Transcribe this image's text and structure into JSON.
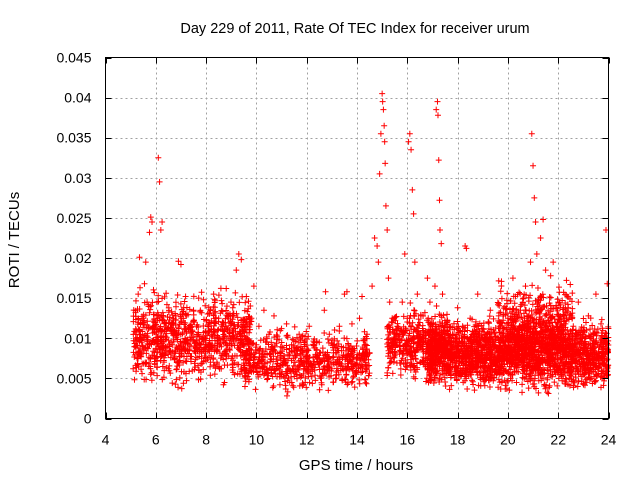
{
  "chart_data": {
    "type": "scatter",
    "title": "Day 229 of 2011, Rate Of TEC Index for receiver urum",
    "xlabel": "GPS time / hours",
    "ylabel": "ROTI / TECUs",
    "xlim": [
      4,
      24
    ],
    "ylim": [
      0,
      0.045
    ],
    "x_ticks": [
      4,
      6,
      8,
      10,
      12,
      14,
      16,
      18,
      20,
      22,
      24
    ],
    "x_tick_labels": [
      "4",
      "6",
      "8",
      "10",
      "12",
      "14",
      "16",
      "18",
      "20",
      "22",
      "24"
    ],
    "y_ticks": [
      0,
      0.005,
      0.01,
      0.015,
      0.02,
      0.025,
      0.03,
      0.035,
      0.04,
      0.045
    ],
    "y_tick_labels": [
      "0",
      "0.005",
      "0.01",
      "0.015",
      "0.02",
      "0.025",
      "0.03",
      "0.035",
      "0.04",
      "0.045"
    ],
    "grid": true,
    "marker": "+",
    "color": "#ff0000",
    "series": [
      {
        "name": "ROTI",
        "points": [
          [
            5.1,
            0.0062
          ],
          [
            5.2,
            0.0105
          ],
          [
            5.3,
            0.0155
          ],
          [
            5.35,
            0.0201
          ],
          [
            5.4,
            0.0078
          ],
          [
            5.5,
            0.0125
          ],
          [
            5.55,
            0.0168
          ],
          [
            5.6,
            0.0195
          ],
          [
            5.65,
            0.0088
          ],
          [
            5.7,
            0.0142
          ],
          [
            5.75,
            0.0232
          ],
          [
            5.8,
            0.0251
          ],
          [
            5.85,
            0.0245
          ],
          [
            5.9,
            0.0112
          ],
          [
            5.95,
            0.0071
          ],
          [
            6.0,
            0.0096
          ],
          [
            6.05,
            0.0145
          ],
          [
            6.1,
            0.0325
          ],
          [
            6.15,
            0.0295
          ],
          [
            6.2,
            0.0235
          ],
          [
            6.25,
            0.0245
          ],
          [
            6.3,
            0.0128
          ],
          [
            6.4,
            0.0085
          ],
          [
            6.5,
            0.0062
          ],
          [
            6.6,
            0.0112
          ],
          [
            6.7,
            0.0098
          ],
          [
            6.8,
            0.0128
          ],
          [
            6.9,
            0.0196
          ],
          [
            7.0,
            0.0192
          ],
          [
            7.1,
            0.0089
          ],
          [
            7.2,
            0.0056
          ],
          [
            7.3,
            0.0112
          ],
          [
            7.4,
            0.0071
          ],
          [
            7.5,
            0.0135
          ],
          [
            7.6,
            0.0088
          ],
          [
            7.7,
            0.0105
          ],
          [
            7.8,
            0.0068
          ],
          [
            7.9,
            0.0148
          ],
          [
            8.0,
            0.0092
          ],
          [
            8.1,
            0.0115
          ],
          [
            8.2,
            0.0078
          ],
          [
            8.3,
            0.0155
          ],
          [
            8.4,
            0.0085
          ],
          [
            8.5,
            0.0125
          ],
          [
            8.6,
            0.0062
          ],
          [
            8.7,
            0.0095
          ],
          [
            8.8,
            0.0162
          ],
          [
            8.9,
            0.0078
          ],
          [
            9.0,
            0.0118
          ],
          [
            9.1,
            0.0142
          ],
          [
            9.2,
            0.0185
          ],
          [
            9.3,
            0.0205
          ],
          [
            9.4,
            0.0198
          ],
          [
            9.5,
            0.0108
          ],
          [
            9.6,
            0.0152
          ],
          [
            9.7,
            0.0085
          ],
          [
            9.8,
            0.0125
          ],
          [
            9.9,
            0.0165
          ],
          [
            10.0,
            0.0092
          ],
          [
            10.1,
            0.0115
          ],
          [
            10.2,
            0.0072
          ],
          [
            10.3,
            0.0135
          ],
          [
            10.4,
            0.0058
          ],
          [
            10.5,
            0.0105
          ],
          [
            10.6,
            0.0088
          ],
          [
            10.7,
            0.0128
          ],
          [
            10.8,
            0.0065
          ],
          [
            10.9,
            0.0098
          ],
          [
            11.0,
            0.0112
          ],
          [
            11.1,
            0.0075
          ],
          [
            11.2,
            0.0118
          ],
          [
            11.3,
            0.0062
          ],
          [
            11.4,
            0.0092
          ],
          [
            11.5,
            0.0085
          ],
          [
            11.6,
            0.0055
          ],
          [
            11.7,
            0.0105
          ],
          [
            11.8,
            0.0072
          ],
          [
            11.9,
            0.0095
          ],
          [
            12.0,
            0.0068
          ],
          [
            12.1,
            0.0115
          ],
          [
            12.2,
            0.0052
          ],
          [
            12.3,
            0.0088
          ],
          [
            12.4,
            0.0078
          ],
          [
            12.5,
            0.0095
          ],
          [
            12.6,
            0.0042
          ],
          [
            12.7,
            0.0135
          ],
          [
            12.75,
            0.0158
          ],
          [
            12.8,
            0.0075
          ],
          [
            12.9,
            0.0105
          ],
          [
            13.0,
            0.0062
          ],
          [
            13.1,
            0.0092
          ],
          [
            13.2,
            0.0082
          ],
          [
            13.3,
            0.0115
          ],
          [
            13.4,
            0.0068
          ],
          [
            13.5,
            0.0155
          ],
          [
            13.6,
            0.0158
          ],
          [
            13.7,
            0.0072
          ],
          [
            13.8,
            0.0118
          ],
          [
            13.9,
            0.0085
          ],
          [
            14.0,
            0.0075
          ],
          [
            14.1,
            0.0125
          ],
          [
            14.2,
            0.0152
          ],
          [
            14.3,
            0.0098
          ],
          [
            14.4,
            0.0105
          ],
          [
            14.5,
            0.0082
          ],
          [
            14.6,
            0.0165
          ],
          [
            14.7,
            0.0225
          ],
          [
            14.8,
            0.0215
          ],
          [
            14.85,
            0.0195
          ],
          [
            14.9,
            0.0305
          ],
          [
            14.95,
            0.0355
          ],
          [
            15.0,
            0.0405
          ],
          [
            15.02,
            0.0395
          ],
          [
            15.05,
            0.0385
          ],
          [
            15.08,
            0.0365
          ],
          [
            15.1,
            0.0345
          ],
          [
            15.12,
            0.0318
          ],
          [
            15.15,
            0.0265
          ],
          [
            15.2,
            0.0235
          ],
          [
            15.25,
            0.0175
          ],
          [
            15.3,
            0.0145
          ],
          [
            15.4,
            0.0125
          ],
          [
            15.5,
            0.0105
          ],
          [
            15.6,
            0.0115
          ],
          [
            15.7,
            0.0085
          ],
          [
            15.8,
            0.0145
          ],
          [
            15.9,
            0.0205
          ],
          [
            16.0,
            0.0125
          ],
          [
            16.05,
            0.0345
          ],
          [
            16.1,
            0.0355
          ],
          [
            16.15,
            0.0335
          ],
          [
            16.2,
            0.0285
          ],
          [
            16.25,
            0.0255
          ],
          [
            16.3,
            0.0195
          ],
          [
            16.4,
            0.0155
          ],
          [
            16.5,
            0.0102
          ],
          [
            16.6,
            0.0092
          ],
          [
            16.7,
            0.0132
          ],
          [
            16.8,
            0.0175
          ],
          [
            16.9,
            0.0145
          ],
          [
            17.0,
            0.0105
          ],
          [
            17.1,
            0.0165
          ],
          [
            17.15,
            0.0385
          ],
          [
            17.2,
            0.0395
          ],
          [
            17.22,
            0.0378
          ],
          [
            17.25,
            0.0322
          ],
          [
            17.28,
            0.0272
          ],
          [
            17.3,
            0.0235
          ],
          [
            17.35,
            0.0218
          ],
          [
            17.4,
            0.0155
          ],
          [
            17.5,
            0.0095
          ],
          [
            17.6,
            0.0122
          ],
          [
            17.7,
            0.0088
          ],
          [
            17.8,
            0.0105
          ],
          [
            17.9,
            0.0072
          ],
          [
            18.0,
            0.0138
          ],
          [
            18.1,
            0.0062
          ],
          [
            18.2,
            0.0115
          ],
          [
            18.3,
            0.0215
          ],
          [
            18.35,
            0.0212
          ],
          [
            18.4,
            0.0085
          ],
          [
            18.5,
            0.0125
          ],
          [
            18.6,
            0.0068
          ],
          [
            18.7,
            0.0098
          ],
          [
            18.8,
            0.0155
          ],
          [
            18.9,
            0.0078
          ],
          [
            19.0,
            0.0112
          ],
          [
            19.1,
            0.0058
          ],
          [
            19.2,
            0.0092
          ],
          [
            19.3,
            0.0135
          ],
          [
            19.4,
            0.0072
          ],
          [
            19.5,
            0.0102
          ],
          [
            19.6,
            0.0082
          ],
          [
            19.7,
            0.0118
          ],
          [
            19.8,
            0.0065
          ],
          [
            19.9,
            0.0095
          ],
          [
            20.0,
            0.0125
          ],
          [
            20.1,
            0.0075
          ],
          [
            20.2,
            0.0175
          ],
          [
            20.3,
            0.0152
          ],
          [
            20.4,
            0.0095
          ],
          [
            20.5,
            0.0135
          ],
          [
            20.6,
            0.0085
          ],
          [
            20.7,
            0.0165
          ],
          [
            20.8,
            0.0118
          ],
          [
            20.9,
            0.0195
          ],
          [
            20.95,
            0.0355
          ],
          [
            21.0,
            0.0315
          ],
          [
            21.05,
            0.0275
          ],
          [
            21.1,
            0.0245
          ],
          [
            21.15,
            0.0205
          ],
          [
            21.2,
            0.0145
          ],
          [
            21.3,
            0.0225
          ],
          [
            21.4,
            0.0248
          ],
          [
            21.5,
            0.0185
          ],
          [
            21.6,
            0.0135
          ],
          [
            21.7,
            0.0178
          ],
          [
            21.8,
            0.0195
          ],
          [
            21.9,
            0.0105
          ],
          [
            22.0,
            0.0145
          ],
          [
            22.1,
            0.0085
          ],
          [
            22.2,
            0.0125
          ],
          [
            22.3,
            0.0068
          ],
          [
            22.4,
            0.0138
          ],
          [
            22.5,
            0.0092
          ],
          [
            22.6,
            0.0115
          ],
          [
            22.7,
            0.0078
          ],
          [
            22.8,
            0.0145
          ],
          [
            22.9,
            0.0088
          ],
          [
            23.0,
            0.0105
          ],
          [
            23.1,
            0.0062
          ],
          [
            23.2,
            0.0128
          ],
          [
            23.3,
            0.0082
          ],
          [
            23.4,
            0.0098
          ],
          [
            23.5,
            0.0155
          ],
          [
            23.6,
            0.0072
          ],
          [
            23.7,
            0.0118
          ],
          [
            23.8,
            0.0088
          ],
          [
            23.9,
            0.0235
          ],
          [
            23.95,
            0.0168
          ]
        ],
        "bands": [
          {
            "x": [
              5.1,
              9.8
            ],
            "y": [
              0.003,
              0.017
            ],
            "count": 900
          },
          {
            "x": [
              9.5,
              14.5
            ],
            "y": [
              0.0025,
              0.012
            ],
            "count": 650
          },
          {
            "x": [
              15.2,
              17.6
            ],
            "y": [
              0.0035,
              0.015
            ],
            "count": 450
          },
          {
            "x": [
              16.8,
              24.0
            ],
            "y": [
              0.0025,
              0.0135
            ],
            "count": 2200
          },
          {
            "x": [
              19.6,
              22.6
            ],
            "y": [
              0.005,
              0.018
            ],
            "count": 500
          }
        ]
      }
    ]
  }
}
